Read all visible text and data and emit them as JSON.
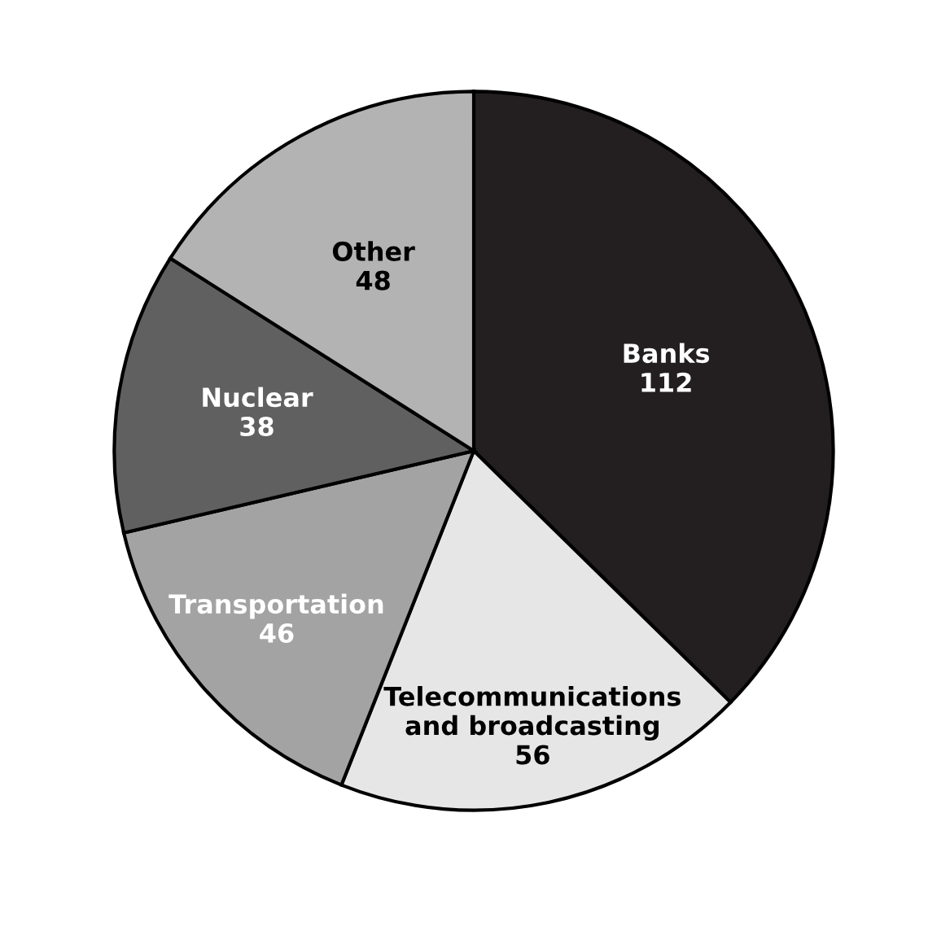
{
  "chart_data": {
    "type": "pie",
    "categories": [
      "Banks",
      "Telecommunications and broadcasting",
      "Transportation",
      "Nuclear",
      "Other"
    ],
    "values": [
      112,
      56,
      46,
      38,
      48
    ],
    "colors": [
      "#231f20",
      "#e6e6e6",
      "#a3a3a3",
      "#606060",
      "#b3b3b3"
    ],
    "data_labels": true
  }
}
